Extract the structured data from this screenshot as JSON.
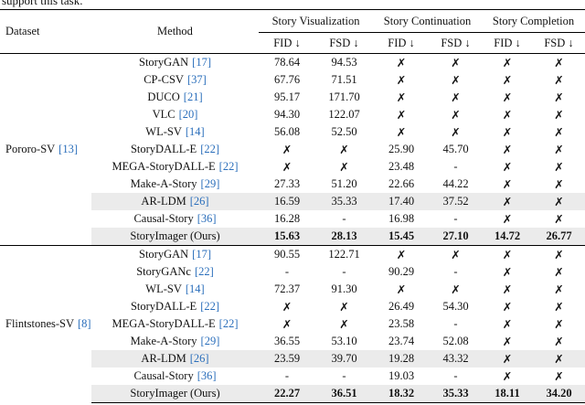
{
  "caption_fragment": "support this task.",
  "table": {
    "headers": {
      "dataset": "Dataset",
      "method": "Method",
      "groups": [
        "Story Visualization",
        "Story Continuation",
        "Story Completion"
      ],
      "metrics": [
        "FID ↓",
        "FSD ↓",
        "FID ↓",
        "FSD ↓",
        "FID ↓",
        "FSD ↓"
      ]
    },
    "sections": [
      {
        "dataset": "Pororo-SV",
        "cite": "[13]",
        "rows": [
          {
            "method": "StoryGAN",
            "cite": "[17]",
            "cells": [
              "78.64",
              "94.53",
              "✗",
              "✗",
              "✗",
              "✗"
            ]
          },
          {
            "method": "CP-CSV",
            "cite": "[37]",
            "cells": [
              "67.76",
              "71.51",
              "✗",
              "✗",
              "✗",
              "✗"
            ]
          },
          {
            "method": "DUCO",
            "cite": "[21]",
            "cells": [
              "95.17",
              "171.70",
              "✗",
              "✗",
              "✗",
              "✗"
            ]
          },
          {
            "method": "VLC",
            "cite": "[20]",
            "cells": [
              "94.30",
              "122.07",
              "✗",
              "✗",
              "✗",
              "✗"
            ]
          },
          {
            "method": "WL-SV",
            "cite": "[14]",
            "cells": [
              "56.08",
              "52.50",
              "✗",
              "✗",
              "✗",
              "✗"
            ]
          },
          {
            "method": "StoryDALL-E",
            "cite": "[22]",
            "cells": [
              "✗",
              "✗",
              "25.90",
              "45.70",
              "✗",
              "✗"
            ]
          },
          {
            "method": "MEGA-StoryDALL-E",
            "cite": "[22]",
            "cells": [
              "✗",
              "✗",
              "23.48",
              "-",
              "✗",
              "✗"
            ]
          },
          {
            "method": "Make-A-Story",
            "cite": "[29]",
            "cells": [
              "27.33",
              "51.20",
              "22.66",
              "44.22",
              "✗",
              "✗"
            ]
          },
          {
            "method": "AR-LDM",
            "cite": "[26]",
            "shaded": true,
            "cells": [
              "16.59",
              "35.33",
              "17.40",
              "37.52",
              "✗",
              "✗"
            ]
          },
          {
            "method": "Causal-Story",
            "cite": "[36]",
            "cells": [
              "16.28",
              "-",
              "16.98",
              "-",
              "✗",
              "✗"
            ]
          },
          {
            "method": "StoryImager (Ours)",
            "shaded": true,
            "bold": true,
            "cells": [
              "15.63",
              "28.13",
              "15.45",
              "27.10",
              "14.72",
              "26.77"
            ]
          }
        ]
      },
      {
        "dataset": "Flintstones-SV",
        "cite": "[8]",
        "rows": [
          {
            "method": "StoryGAN",
            "cite": "[17]",
            "cells": [
              "90.55",
              "122.71",
              "✗",
              "✗",
              "✗",
              "✗"
            ]
          },
          {
            "method": "StoryGANc",
            "cite": "[22]",
            "cells": [
              "-",
              "-",
              "90.29",
              "-",
              "✗",
              "✗"
            ]
          },
          {
            "method": "WL-SV",
            "cite": "[14]",
            "cells": [
              "72.37",
              "91.30",
              "✗",
              "✗",
              "✗",
              "✗"
            ]
          },
          {
            "method": "StoryDALL-E",
            "cite": "[22]",
            "cells": [
              "✗",
              "✗",
              "26.49",
              "54.30",
              "✗",
              "✗"
            ]
          },
          {
            "method": "MEGA-StoryDALL-E",
            "cite": "[22]",
            "cells": [
              "✗",
              "✗",
              "23.58",
              "-",
              "✗",
              "✗"
            ]
          },
          {
            "method": "Make-A-Story",
            "cite": "[29]",
            "cells": [
              "36.55",
              "53.10",
              "23.74",
              "52.08",
              "✗",
              "✗"
            ]
          },
          {
            "method": "AR-LDM",
            "cite": "[26]",
            "shaded": true,
            "cells": [
              "23.59",
              "39.70",
              "19.28",
              "43.32",
              "✗",
              "✗"
            ]
          },
          {
            "method": "Causal-Story",
            "cite": "[36]",
            "cells": [
              "-",
              "-",
              "19.03",
              "-",
              "✗",
              "✗"
            ]
          },
          {
            "method": "StoryImager (Ours)",
            "shaded": true,
            "bold": true,
            "cells": [
              "22.27",
              "36.51",
              "18.32",
              "35.33",
              "18.11",
              "34.20"
            ]
          }
        ]
      }
    ]
  }
}
